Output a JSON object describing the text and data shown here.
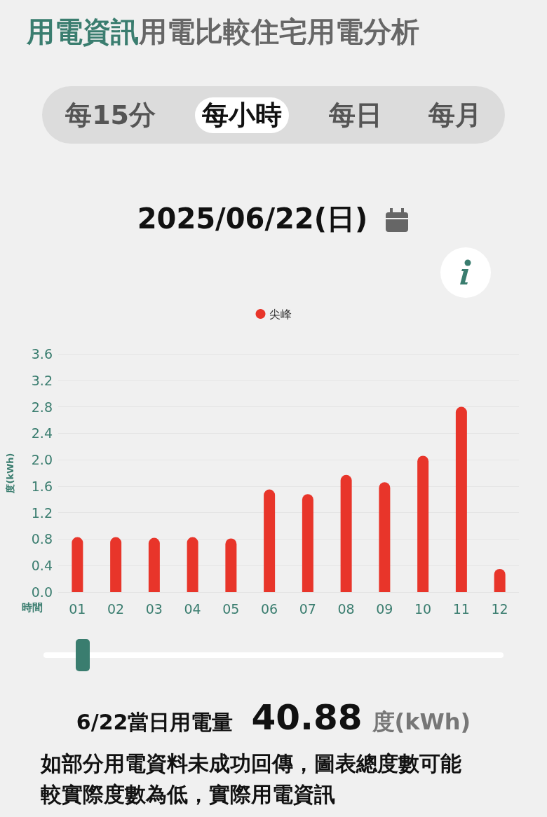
{
  "chart_data": {
    "type": "bar",
    "title": "2025/06/22(日)",
    "xlabel": "時間",
    "ylabel": "度(kWh)",
    "categories": [
      "01",
      "02",
      "03",
      "04",
      "05",
      "06",
      "07",
      "08",
      "09",
      "10",
      "11",
      "12"
    ],
    "series": [
      {
        "name": "尖峰",
        "color": "#e8352a",
        "values": [
          0.83,
          0.83,
          0.82,
          0.83,
          0.81,
          1.55,
          1.48,
          1.77,
          1.66,
          2.06,
          2.8,
          0.35
        ]
      }
    ],
    "ylim": [
      0,
      3.6
    ],
    "yticks": [
      {
        "value": 0,
        "label": "0.0"
      },
      0.4,
      0.8,
      1.2,
      1.6,
      {
        "value": 2,
        "label": "2.0"
      },
      2.4,
      2.8,
      3.2,
      3.6
    ],
    "grid": "y",
    "legend": "top",
    "annotations": [
      "用電資訊",
      "用電比較",
      "住宅用電分析",
      "每15分",
      "每小時",
      "每日",
      "每月",
      "6/22當日用電量",
      "40.88",
      "度(kWh)",
      "如部分用電資料未成功回傳，圖表總度數可能較實際度數為低，實際用電資訊"
    ]
  }
}
